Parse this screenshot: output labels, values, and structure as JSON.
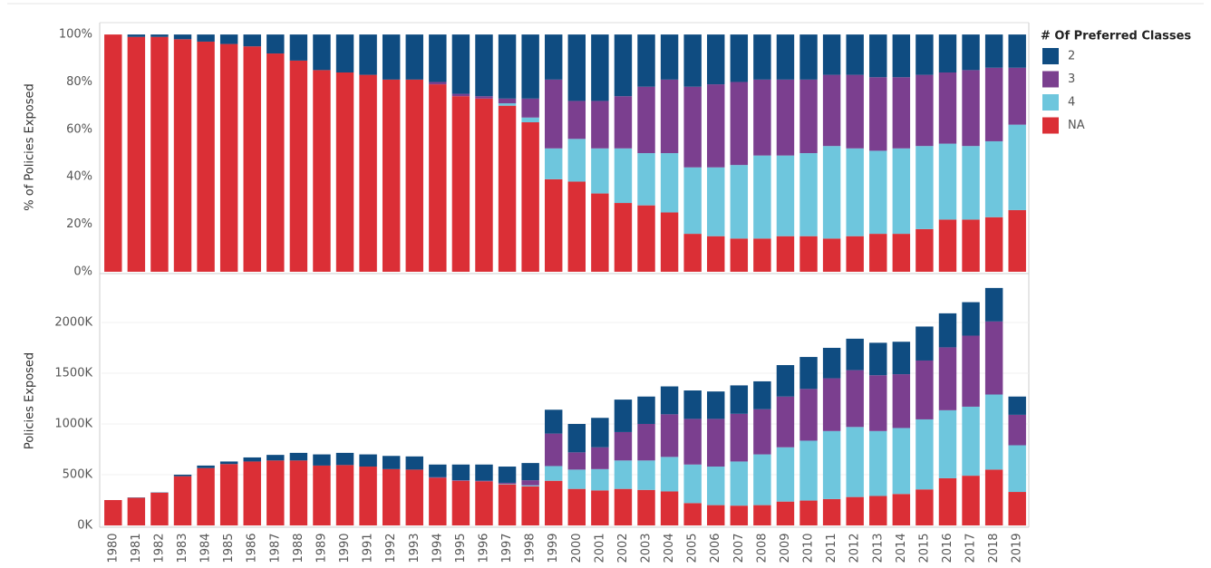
{
  "chart_data": [
    {
      "type": "stacked-bar",
      "y_label": "% of Policies Exposed",
      "legend_title": "# Of Preferred Classes",
      "ylim": [
        0,
        105
      ],
      "yticks": [
        {
          "value": 0,
          "label": "0%"
        },
        {
          "value": 20,
          "label": "20%"
        },
        {
          "value": 40,
          "label": "40%"
        },
        {
          "value": 60,
          "label": "60%"
        },
        {
          "value": 80,
          "label": "80%"
        },
        {
          "value": 100,
          "label": "100%"
        }
      ],
      "series": [
        {
          "name": "2",
          "color": "#0f4c81",
          "values": [
            0,
            1,
            1,
            2,
            3,
            4,
            5,
            8,
            11,
            15,
            16,
            17,
            19,
            19,
            20,
            25,
            26,
            27,
            27,
            19,
            28,
            28,
            26,
            22,
            19,
            22,
            21,
            20,
            19,
            19,
            19,
            17,
            17,
            18,
            18,
            17,
            16,
            15,
            14,
            14
          ]
        },
        {
          "name": "3",
          "color": "#7b3f8f",
          "values": [
            0,
            0,
            0,
            0,
            0,
            0,
            0,
            0,
            0,
            0,
            0,
            0,
            0,
            0,
            1,
            1,
            1,
            2,
            8,
            29,
            16,
            20,
            22,
            28,
            31,
            34,
            35,
            35,
            32,
            32,
            31,
            30,
            31,
            31,
            30,
            30,
            30,
            32,
            31,
            24
          ]
        },
        {
          "name": "4",
          "color": "#6ec6dd",
          "values": [
            0,
            0,
            0,
            0,
            0,
            0,
            0,
            0,
            0,
            0,
            0,
            0,
            0,
            0,
            0,
            0,
            0,
            1,
            2,
            13,
            18,
            19,
            23,
            22,
            25,
            28,
            29,
            31,
            35,
            34,
            35,
            39,
            37,
            35,
            36,
            35,
            32,
            31,
            32,
            36
          ]
        },
        {
          "name": "NA",
          "color": "#db2f36",
          "values": [
            100,
            99,
            99,
            98,
            97,
            96,
            95,
            92,
            89,
            85,
            84,
            83,
            81,
            81,
            79,
            74,
            73,
            70,
            63,
            39,
            38,
            33,
            29,
            28,
            25,
            16,
            15,
            14,
            14,
            15,
            15,
            14,
            15,
            16,
            16,
            18,
            22,
            22,
            23,
            26
          ]
        }
      ]
    },
    {
      "type": "stacked-bar",
      "y_label": "Policies Exposed",
      "grid": true,
      "categories": [
        "1980",
        "1981",
        "1982",
        "1983",
        "1984",
        "1985",
        "1986",
        "1987",
        "1988",
        "1989",
        "1990",
        "1991",
        "1992",
        "1993",
        "1994",
        "1995",
        "1996",
        "1997",
        "1998",
        "1999",
        "2000",
        "2001",
        "2002",
        "2003",
        "2004",
        "2005",
        "2006",
        "2007",
        "2008",
        "2009",
        "2010",
        "2011",
        "2012",
        "2013",
        "2014",
        "2015",
        "2016",
        "2017",
        "2018",
        "2019"
      ],
      "ylim": [
        0,
        2455
      ],
      "yticks": [
        {
          "value": 0,
          "label": "0K"
        },
        {
          "value": 500,
          "label": "500K"
        },
        {
          "value": 1000,
          "label": "1000K"
        },
        {
          "value": 1500,
          "label": "1500K"
        },
        {
          "value": 2000,
          "label": "2000K"
        }
      ],
      "series": [
        {
          "values": [
            0,
            3,
            3,
            15,
            25,
            25,
            40,
            55,
            75,
            110,
            120,
            120,
            130,
            130,
            125,
            155,
            160,
            160,
            170,
            235,
            280,
            290,
            320,
            270,
            275,
            280,
            270,
            280,
            275,
            310,
            315,
            300,
            310,
            320,
            320,
            335,
            335,
            330,
            330,
            180
          ]
        },
        {
          "values": [
            0,
            0,
            0,
            0,
            0,
            0,
            0,
            0,
            0,
            0,
            0,
            0,
            0,
            0,
            5,
            5,
            5,
            10,
            50,
            320,
            170,
            215,
            280,
            360,
            420,
            450,
            470,
            470,
            445,
            500,
            510,
            520,
            560,
            550,
            530,
            580,
            620,
            700,
            720,
            300
          ]
        },
        {
          "values": [
            0,
            0,
            0,
            0,
            0,
            0,
            0,
            0,
            0,
            0,
            0,
            0,
            0,
            0,
            0,
            0,
            0,
            5,
            10,
            145,
            190,
            210,
            280,
            290,
            340,
            380,
            380,
            435,
            500,
            535,
            590,
            670,
            690,
            640,
            650,
            690,
            670,
            680,
            740,
            460
          ]
        },
        {
          "values": [
            250,
            272,
            322,
            485,
            565,
            605,
            630,
            640,
            640,
            590,
            595,
            580,
            555,
            550,
            470,
            440,
            435,
            405,
            385,
            440,
            360,
            345,
            360,
            350,
            335,
            220,
            200,
            195,
            200,
            235,
            245,
            260,
            280,
            290,
            310,
            355,
            465,
            490,
            550,
            330
          ]
        }
      ]
    }
  ]
}
